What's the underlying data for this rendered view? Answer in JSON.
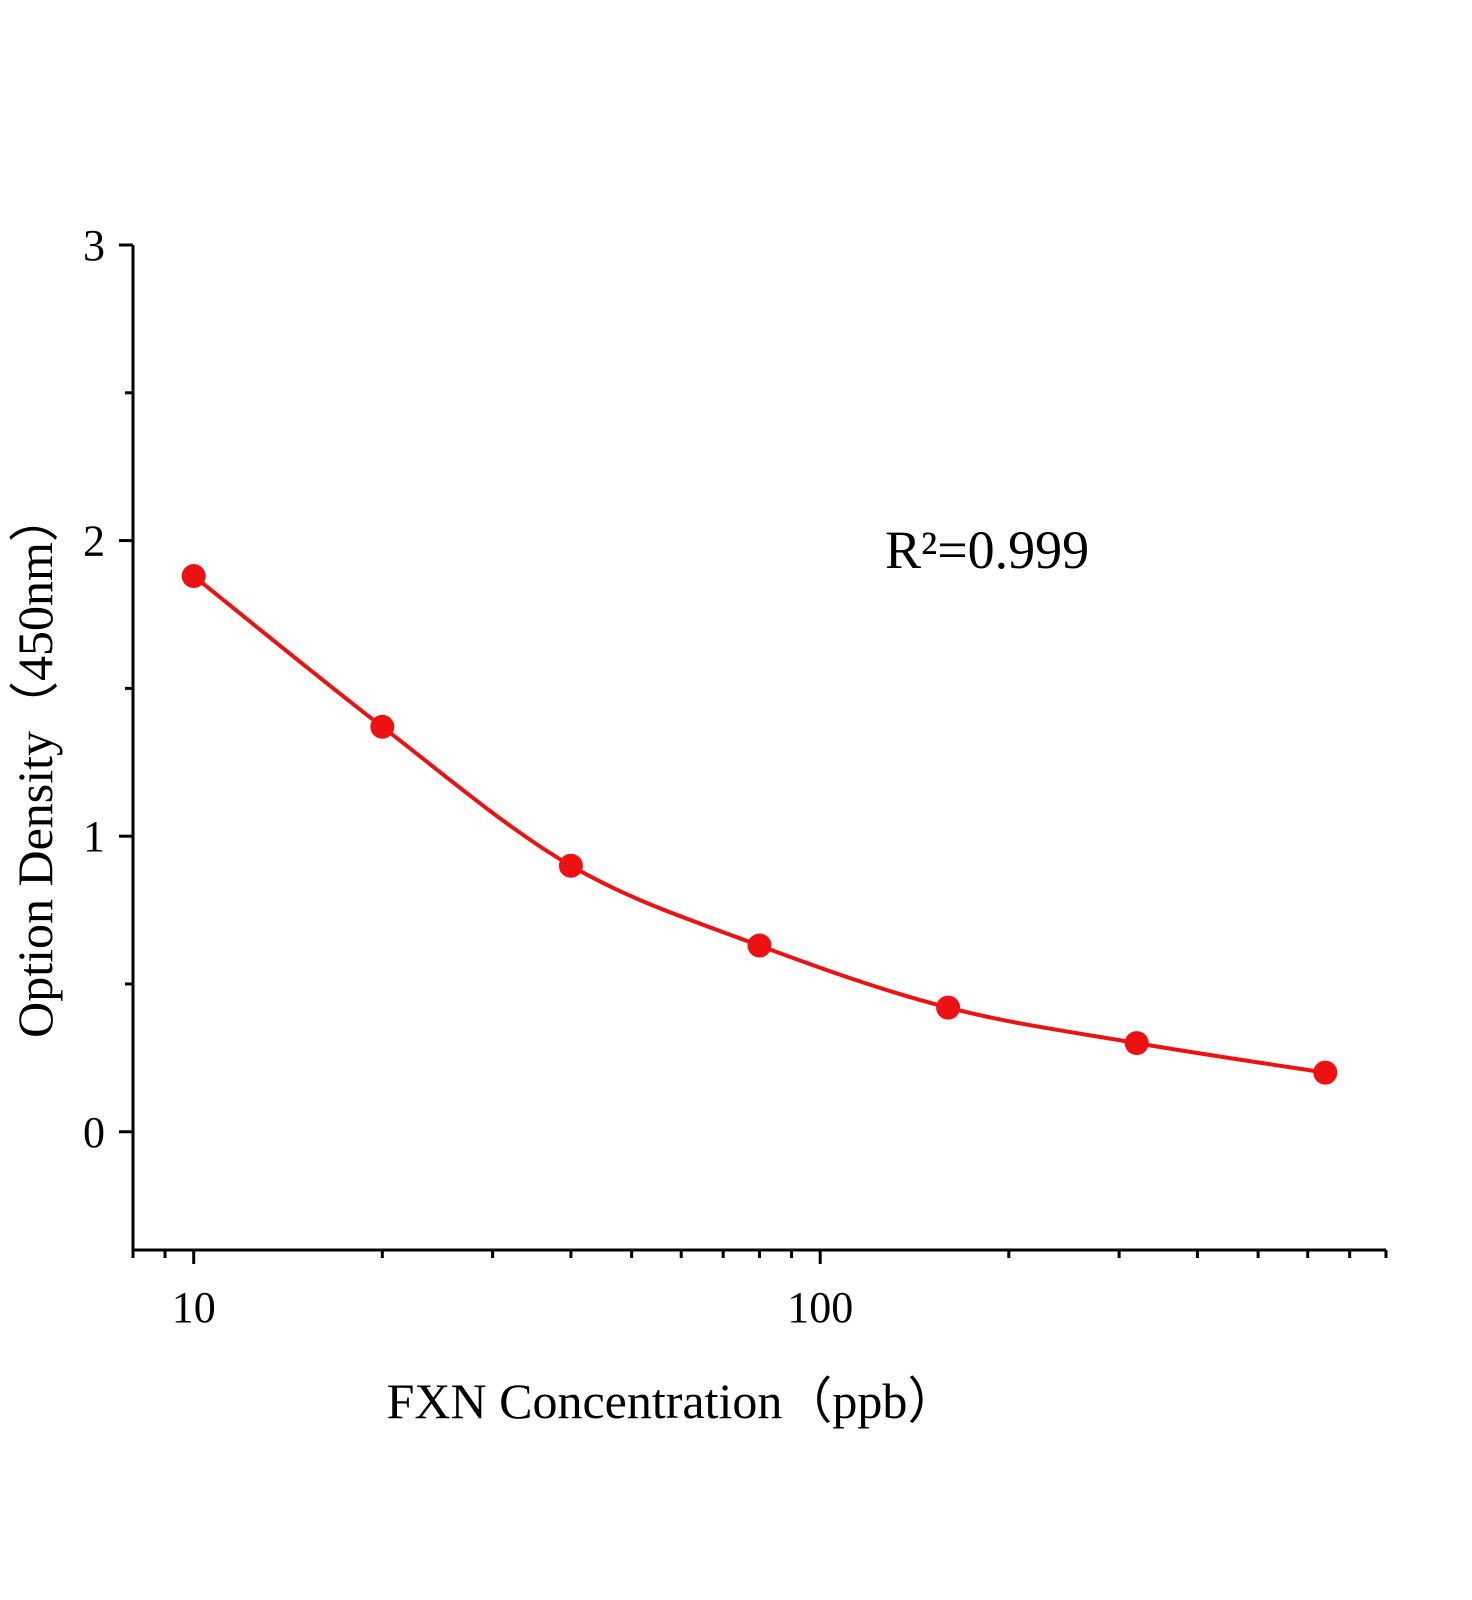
{
  "chart_data": {
    "type": "scatter",
    "x_label": "FXN  Concentration（ppb）",
    "y_label": "Option Density（450nm）",
    "annotation": "R²=0.999",
    "x_log": true,
    "xlim": [
      8,
      800
    ],
    "xticks": [
      10,
      100
    ],
    "ylim": [
      -0.4,
      3
    ],
    "yticks": [
      0,
      1,
      2,
      3
    ],
    "series": [
      {
        "color": "#ee1111",
        "x": [
          10,
          20,
          40,
          80,
          160,
          320,
          640
        ],
        "values": [
          1.88,
          1.37,
          0.9,
          0.63,
          0.42,
          0.3,
          0.2
        ]
      }
    ]
  }
}
